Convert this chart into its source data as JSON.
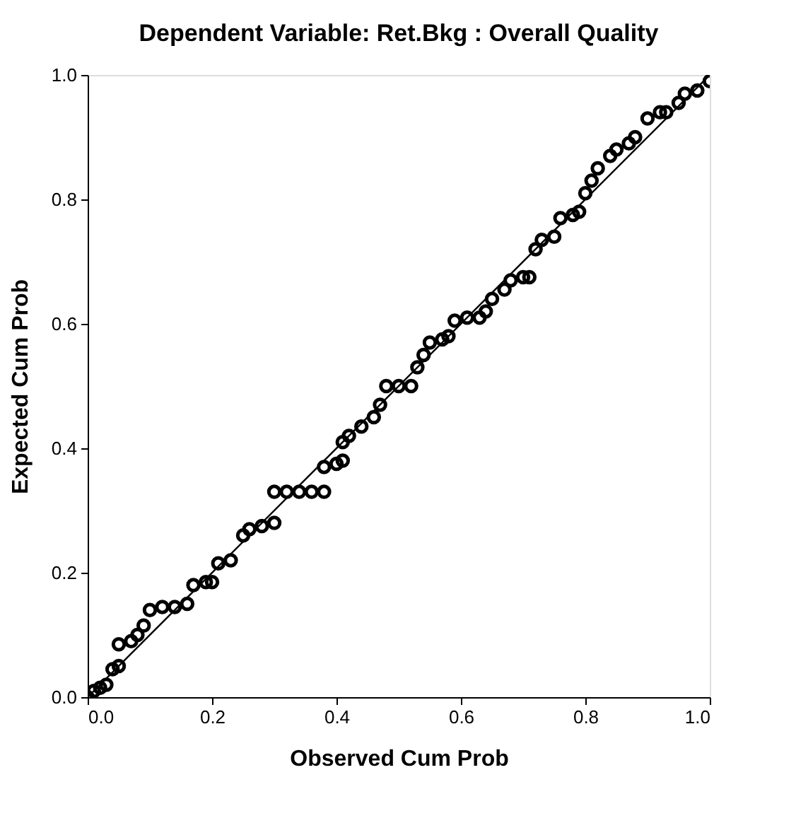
{
  "chart_data": {
    "type": "scatter",
    "title": "Dependent Variable: Ret.Bkg : Overall Quality",
    "xlabel": "Observed Cum Prob",
    "ylabel": "Expected Cum Prob",
    "xlim": [
      0,
      1
    ],
    "ylim": [
      0,
      1
    ],
    "xticks": [
      {
        "value": 0,
        "label": "0.0"
      },
      {
        "value": 0.2,
        "label": "0.2"
      },
      {
        "value": 0.4,
        "label": "0.4"
      },
      {
        "value": 0.6,
        "label": "0.6"
      },
      {
        "value": 0.8,
        "label": "0.8"
      },
      {
        "value": 1,
        "label": "1.0"
      }
    ],
    "yticks": [
      {
        "value": 0,
        "label": "0.0"
      },
      {
        "value": 0.2,
        "label": "0.2"
      },
      {
        "value": 0.4,
        "label": "0.4"
      },
      {
        "value": 0.6,
        "label": "0.6"
      },
      {
        "value": 0.8,
        "label": "0.8"
      },
      {
        "value": 1,
        "label": "1.0"
      }
    ],
    "grid": false,
    "series": [
      {
        "marker": "circle",
        "color": "#000000",
        "x": [
          0.0,
          0.01,
          0.02,
          0.03,
          0.04,
          0.05,
          0.05,
          0.07,
          0.08,
          0.09,
          0.1,
          0.12,
          0.14,
          0.16,
          0.17,
          0.19,
          0.2,
          0.21,
          0.23,
          0.25,
          0.26,
          0.28,
          0.3,
          0.3,
          0.32,
          0.34,
          0.36,
          0.38,
          0.38,
          0.4,
          0.41,
          0.41,
          0.42,
          0.44,
          0.46,
          0.47,
          0.48,
          0.5,
          0.52,
          0.53,
          0.54,
          0.55,
          0.57,
          0.58,
          0.59,
          0.61,
          0.63,
          0.64,
          0.65,
          0.67,
          0.68,
          0.7,
          0.71,
          0.72,
          0.73,
          0.75,
          0.76,
          0.78,
          0.79,
          0.8,
          0.81,
          0.82,
          0.84,
          0.85,
          0.87,
          0.88,
          0.9,
          0.92,
          0.93,
          0.95,
          0.96,
          0.98,
          1.0
        ],
        "values": [
          0.0,
          0.01,
          0.015,
          0.02,
          0.045,
          0.05,
          0.085,
          0.09,
          0.1,
          0.115,
          0.14,
          0.145,
          0.145,
          0.15,
          0.18,
          0.185,
          0.185,
          0.215,
          0.22,
          0.26,
          0.27,
          0.275,
          0.28,
          0.33,
          0.33,
          0.33,
          0.33,
          0.33,
          0.37,
          0.375,
          0.38,
          0.41,
          0.42,
          0.435,
          0.45,
          0.47,
          0.5,
          0.5,
          0.5,
          0.53,
          0.55,
          0.57,
          0.575,
          0.58,
          0.605,
          0.61,
          0.61,
          0.62,
          0.64,
          0.655,
          0.67,
          0.675,
          0.675,
          0.72,
          0.735,
          0.74,
          0.77,
          0.775,
          0.78,
          0.81,
          0.83,
          0.85,
          0.87,
          0.88,
          0.89,
          0.9,
          0.93,
          0.94,
          0.94,
          0.955,
          0.97,
          0.975,
          0.99
        ]
      },
      {
        "type": "line",
        "color": "#000000",
        "line_style": "solid",
        "x": [
          0,
          1
        ],
        "values": [
          0,
          1
        ]
      }
    ]
  }
}
